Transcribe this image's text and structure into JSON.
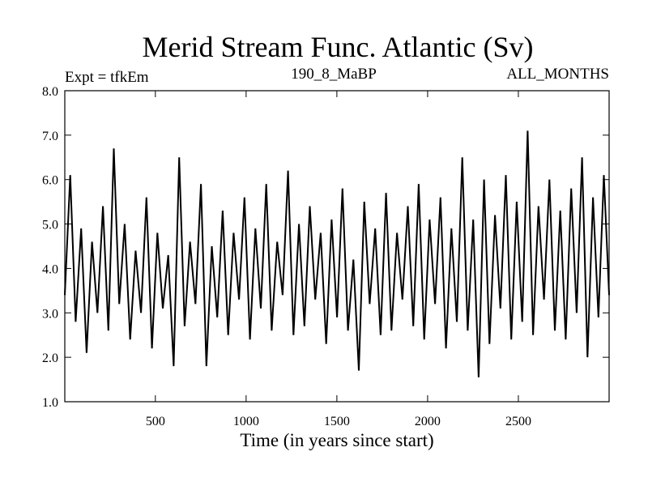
{
  "chart_data": {
    "type": "line",
    "title": "Merid Stream Func. Atlantic (Sv)",
    "subtitle_left": "Expt = tfkEm",
    "subtitle_center": "190_8_MaBP",
    "subtitle_right": "ALL_MONTHS",
    "xlabel": "Time (in years since start)",
    "ylabel": "",
    "xlim": [
      1,
      3000
    ],
    "ylim": [
      1.0,
      8.0
    ],
    "x_ticks": [
      500,
      1000,
      1500,
      2000,
      2500
    ],
    "x_tick_labels": [
      "500",
      "1000",
      "1500",
      "2000",
      "2500"
    ],
    "y_ticks": [
      1.0,
      2.0,
      3.0,
      4.0,
      5.0,
      6.0,
      7.0,
      8.0
    ],
    "y_tick_labels": [
      "1.0",
      "2.0",
      "3.0",
      "4.0",
      "5.0",
      "6.0",
      "7.0",
      "8.0"
    ],
    "grid": false,
    "line_color": "#000000",
    "series": [
      {
        "sampling_step_years": 30,
        "x": [
          1,
          31,
          61,
          91,
          121,
          151,
          181,
          211,
          241,
          271,
          301,
          331,
          361,
          391,
          421,
          451,
          481,
          511,
          541,
          571,
          601,
          631,
          661,
          691,
          721,
          751,
          781,
          811,
          841,
          871,
          901,
          931,
          961,
          991,
          1021,
          1051,
          1081,
          1111,
          1141,
          1171,
          1201,
          1231,
          1261,
          1291,
          1321,
          1351,
          1381,
          1411,
          1441,
          1471,
          1501,
          1531,
          1561,
          1591,
          1621,
          1651,
          1681,
          1711,
          1741,
          1771,
          1801,
          1831,
          1861,
          1891,
          1921,
          1951,
          1981,
          2011,
          2041,
          2071,
          2101,
          2131,
          2161,
          2191,
          2221,
          2251,
          2281,
          2311,
          2341,
          2371,
          2401,
          2431,
          2461,
          2491,
          2521,
          2551,
          2581,
          2611,
          2641,
          2671,
          2701,
          2731,
          2761,
          2791,
          2821,
          2851,
          2881,
          2911,
          2941,
          2971,
          3000
        ],
        "values": [
          3.4,
          6.1,
          2.8,
          4.9,
          2.1,
          4.6,
          3.0,
          5.4,
          2.6,
          6.7,
          3.2,
          5.0,
          2.4,
          4.4,
          3.0,
          5.6,
          2.2,
          4.8,
          3.1,
          4.3,
          1.8,
          6.5,
          2.7,
          4.6,
          3.2,
          5.9,
          1.8,
          4.5,
          2.9,
          5.3,
          2.5,
          4.8,
          3.3,
          5.6,
          2.4,
          4.9,
          3.1,
          5.9,
          2.6,
          4.6,
          3.4,
          6.2,
          2.5,
          5.0,
          2.7,
          5.4,
          3.3,
          4.8,
          2.3,
          5.1,
          2.9,
          5.8,
          2.6,
          4.2,
          1.7,
          5.5,
          3.2,
          4.9,
          2.5,
          5.7,
          2.6,
          4.8,
          3.3,
          5.4,
          2.7,
          5.9,
          2.4,
          5.1,
          3.2,
          5.6,
          2.2,
          4.9,
          2.8,
          6.5,
          2.6,
          5.1,
          1.55,
          6.0,
          2.3,
          5.2,
          3.1,
          6.1,
          2.4,
          5.5,
          2.8,
          7.1,
          2.5,
          5.4,
          3.3,
          6.0,
          2.6,
          5.3,
          2.4,
          5.8,
          3.0,
          6.5,
          2.0,
          5.6,
          2.9,
          6.1,
          3.4
        ]
      }
    ]
  }
}
